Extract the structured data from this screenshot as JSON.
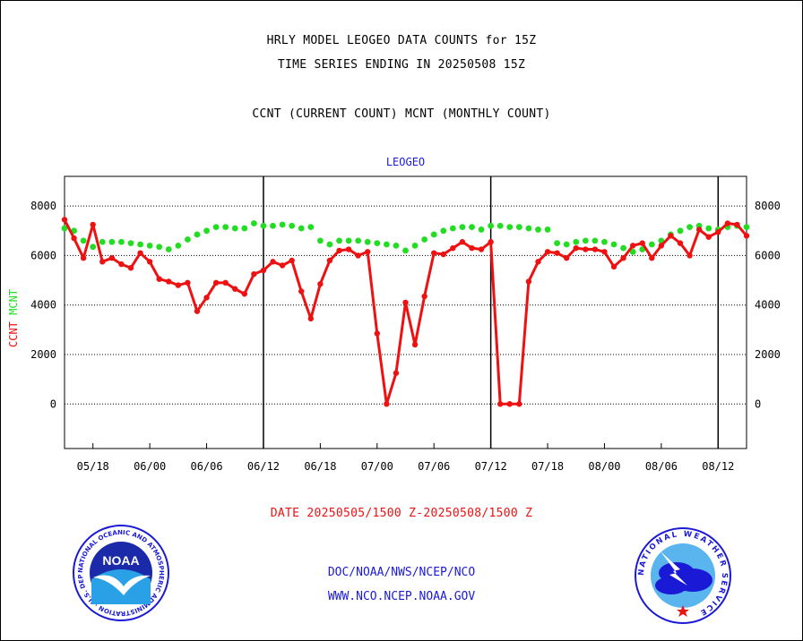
{
  "header": {
    "title_line1": "HRLY MODEL LEOGEO DATA COUNTS for 15Z",
    "title_line2": "TIME SERIES ENDING IN 20250508 15Z",
    "subtitle": "CCNT (CURRENT COUNT) MCNT (MONTHLY COUNT)"
  },
  "footer": {
    "date_range": "DATE 20250505/1500 Z-20250508/1500 Z",
    "org_path": "DOC/NOAA/NWS/NCEP/NCO",
    "website": "WWW.NCO.NCEP.NOAA.GOV"
  },
  "logos": {
    "noaa": {
      "center_text": "NOAA",
      "ring_text": "NATIONAL OCEANIC AND ATMOSPHERIC ADMINISTRATION · U.S. DEPARTMENT OF COMMERCE"
    },
    "nws": {
      "ring_text": "NATIONAL WEATHER SERVICE"
    }
  },
  "colors": {
    "ccnt": "#ee1111",
    "mcnt": "#22dd22",
    "axis_title": "#1a1ad6",
    "footer_date": "#ee1111"
  },
  "chart_data": {
    "type": "line",
    "title": "LEOGEO",
    "ylabel_parts": [
      {
        "text": "CCNT",
        "color": "#ee1111"
      },
      {
        "text": "MCNT",
        "color": "#22dd22"
      }
    ],
    "ylim": [
      -1800,
      9200
    ],
    "yticks": [
      0,
      2000,
      4000,
      6000,
      8000
    ],
    "ytick_labels": [
      "0",
      "2000",
      "4000",
      "6000",
      "8000"
    ],
    "xlim": [
      0,
      72
    ],
    "xticks": [
      3,
      9,
      15,
      21,
      27,
      33,
      39,
      45,
      51,
      57,
      63,
      69
    ],
    "xtick_labels": [
      "05/18",
      "06/00",
      "06/06",
      "06/12",
      "06/18",
      "07/00",
      "07/06",
      "07/12",
      "07/18",
      "08/00",
      "08/06",
      "08/12"
    ],
    "day_boundaries": [
      21,
      45,
      69
    ],
    "grid": true,
    "series": [
      {
        "name": "CCNT",
        "color": "#ee1111",
        "x": [
          0,
          1,
          2,
          3,
          4,
          5,
          6,
          7,
          8,
          9,
          10,
          11,
          12,
          13,
          14,
          15,
          16,
          17,
          18,
          19,
          20,
          21,
          22,
          23,
          24,
          25,
          26,
          27,
          28,
          29,
          30,
          31,
          32,
          33,
          34,
          35,
          36,
          37,
          38,
          39,
          40,
          41,
          42,
          43,
          44,
          45,
          46,
          47,
          48,
          49,
          50,
          51,
          52,
          53,
          54,
          55,
          56,
          57,
          58,
          59,
          60,
          61,
          62,
          63,
          64,
          65,
          66,
          67,
          68,
          69,
          70,
          71,
          72
        ],
        "values": [
          7450,
          6700,
          5900,
          7250,
          5750,
          5900,
          5650,
          5500,
          6100,
          5750,
          5050,
          4950,
          4800,
          4900,
          3750,
          4300,
          4900,
          4900,
          4650,
          4450,
          5250,
          5400,
          5750,
          5600,
          5800,
          4550,
          3450,
          4850,
          5800,
          6200,
          6250,
          6000,
          6150,
          2850,
          0,
          1250,
          4100,
          2400,
          4350,
          6100,
          6050,
          6300,
          6550,
          6300,
          6250,
          6550,
          0,
          0,
          0,
          4950,
          5750,
          6150,
          6100,
          5900,
          6300,
          6250,
          6250,
          6150,
          5550,
          5900,
          6400,
          6500,
          5900,
          6400,
          6800,
          6500,
          6000,
          7050,
          6750,
          6950,
          7300,
          7250,
          6800
        ]
      },
      {
        "name": "MCNT",
        "color": "#22dd22",
        "x": [
          0,
          1,
          2,
          3,
          4,
          5,
          6,
          7,
          8,
          9,
          10,
          11,
          12,
          13,
          14,
          15,
          16,
          17,
          18,
          19,
          20,
          21,
          22,
          23,
          24,
          25,
          26,
          27,
          28,
          29,
          30,
          31,
          32,
          33,
          34,
          35,
          36,
          37,
          38,
          39,
          40,
          41,
          42,
          43,
          44,
          45,
          46,
          47,
          48,
          49,
          50,
          51,
          52,
          53,
          54,
          55,
          56,
          57,
          58,
          59,
          60,
          61,
          62,
          63,
          64,
          65,
          66,
          67,
          68,
          69,
          70,
          71,
          72
        ],
        "values": [
          7100,
          7000,
          6600,
          6350,
          6550,
          6550,
          6550,
          6500,
          6450,
          6400,
          6350,
          6250,
          6400,
          6650,
          6850,
          7000,
          7150,
          7150,
          7100,
          7100,
          7300,
          7200,
          7200,
          7250,
          7200,
          7100,
          7150,
          6600,
          6450,
          6600,
          6600,
          6600,
          6550,
          6500,
          6450,
          6400,
          6200,
          6400,
          6650,
          6850,
          7000,
          7100,
          7150,
          7150,
          7050,
          7200,
          7200,
          7150,
          7150,
          7100,
          7050,
          7050,
          6500,
          6450,
          6550,
          6600,
          6600,
          6550,
          6450,
          6300,
          6150,
          6250,
          6450,
          6600,
          6850,
          7000,
          7150,
          7200,
          7100,
          7050,
          7150,
          7200,
          7150
        ]
      }
    ]
  }
}
